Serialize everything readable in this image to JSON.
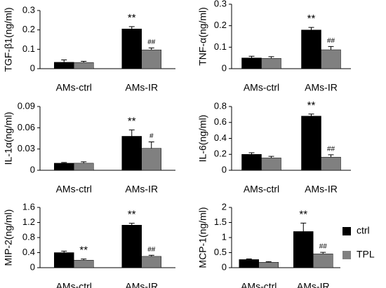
{
  "chart_data": [
    {
      "type": "bar",
      "y_label": "TGF-β1(ng/ml)",
      "categories": [
        "AMs-ctrl",
        "AMs-IR"
      ],
      "ylim": [
        0,
        0.3
      ],
      "yticks": [
        0,
        0.1,
        0.2,
        0.3
      ],
      "series": [
        {
          "color": "#000000",
          "values": [
            0.033,
            0.205
          ],
          "errors": [
            0.012,
            0.012
          ],
          "annotations": [
            null,
            "**"
          ]
        },
        {
          "color": "#808080",
          "values": [
            0.032,
            0.097
          ],
          "errors": [
            0.006,
            0.01
          ],
          "annotations": [
            null,
            "##"
          ]
        }
      ]
    },
    {
      "type": "bar",
      "y_label": "TNF-α(ng/ml)",
      "categories": [
        "AMs-ctrl",
        "AMs-IR"
      ],
      "ylim": [
        0,
        0.3
      ],
      "yticks": [
        0,
        0.1,
        0.2,
        0.3
      ],
      "series": [
        {
          "color": "#000000",
          "values": [
            0.05,
            0.18
          ],
          "errors": [
            0.008,
            0.012
          ],
          "annotations": [
            null,
            "**"
          ]
        },
        {
          "color": "#808080",
          "values": [
            0.048,
            0.088
          ],
          "errors": [
            0.008,
            0.015
          ],
          "annotations": [
            null,
            "##"
          ]
        }
      ]
    },
    {
      "type": "bar",
      "y_label": "IL-1α(ng/ml)",
      "categories": [
        "AMs-ctrl",
        "AMs-IR"
      ],
      "ylim": [
        0,
        0.09
      ],
      "yticks": [
        0,
        0.03,
        0.06,
        0.09
      ],
      "series": [
        {
          "color": "#000000",
          "values": [
            0.01,
            0.048
          ],
          "errors": [
            0.001,
            0.009
          ],
          "annotations": [
            null,
            "**"
          ]
        },
        {
          "color": "#808080",
          "values": [
            0.01,
            0.031
          ],
          "errors": [
            0.002,
            0.009
          ],
          "annotations": [
            null,
            "#"
          ]
        }
      ]
    },
    {
      "type": "bar",
      "y_label": "IL-6(ng/ml)",
      "categories": [
        "AMs-ctrl",
        "AMs-IR"
      ],
      "ylim": [
        0,
        0.8
      ],
      "yticks": [
        0,
        0.2,
        0.4,
        0.6,
        0.8
      ],
      "series": [
        {
          "color": "#000000",
          "values": [
            0.2,
            0.68
          ],
          "errors": [
            0.02,
            0.025
          ],
          "annotations": [
            null,
            "**"
          ]
        },
        {
          "color": "#808080",
          "values": [
            0.155,
            0.165
          ],
          "errors": [
            0.02,
            0.03
          ],
          "annotations": [
            null,
            "##"
          ]
        }
      ]
    },
    {
      "type": "bar",
      "y_label": "MIP-2(ng/ml)",
      "categories": [
        "AMs-ctrl",
        "AMs-IR"
      ],
      "ylim": [
        0,
        1.6
      ],
      "yticks": [
        0,
        0.4,
        0.8,
        1.2,
        1.6
      ],
      "series": [
        {
          "color": "#000000",
          "values": [
            0.4,
            1.13
          ],
          "errors": [
            0.04,
            0.05
          ],
          "annotations": [
            null,
            "**"
          ]
        },
        {
          "color": "#808080",
          "values": [
            0.2,
            0.3
          ],
          "errors": [
            0.03,
            0.03
          ],
          "annotations": [
            "**",
            "##"
          ]
        }
      ]
    },
    {
      "type": "bar",
      "y_label": "MCP-1(ng/ml)",
      "categories": [
        "AMs-ctrl",
        "AMs-IR"
      ],
      "ylim": [
        0,
        2
      ],
      "yticks": [
        0,
        0.5,
        1,
        1.5,
        2
      ],
      "series": [
        {
          "name": "ctrl",
          "color": "#000000",
          "values": [
            0.27,
            1.2
          ],
          "errors": [
            0.02,
            0.28
          ],
          "annotations": [
            null,
            "**"
          ]
        },
        {
          "name": "TPL",
          "color": "#808080",
          "values": [
            0.18,
            0.46
          ],
          "errors": [
            0.02,
            0.05
          ],
          "annotations": [
            null,
            "##"
          ]
        }
      ]
    }
  ]
}
